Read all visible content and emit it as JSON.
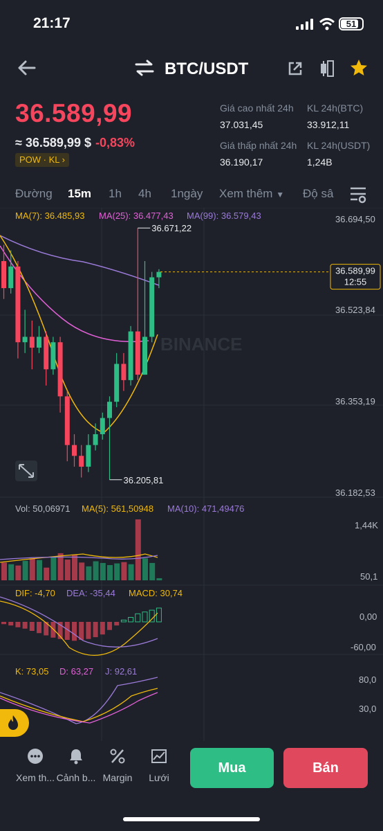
{
  "status": {
    "time": "21:17",
    "battery": "51"
  },
  "header": {
    "pair": "BTC/USDT"
  },
  "price": {
    "last": "36.589,99",
    "approx": "≈ 36.589,99 $",
    "change": "-0,83%",
    "tags": "POW · KL ›"
  },
  "stats": {
    "high_label": "Giá cao nhất 24h",
    "high_value": "37.031,45",
    "vol_btc_label": "KL 24h(BTC)",
    "vol_btc_value": "33.912,11",
    "low_label": "Giá thấp nhất 24h",
    "low_value": "36.190,17",
    "vol_usdt_label": "KL 24h(USDT)",
    "vol_usdt_value": "1,24B"
  },
  "tabs": [
    "Đường",
    "15m",
    "1h",
    "4h",
    "1ngày",
    "Xem thêm",
    "Độ sâ"
  ],
  "active_tab": "15m",
  "colors": {
    "up": "#2ebd85",
    "down": "#f6465d",
    "ma7": "#f0b90b",
    "ma25": "#e361d8",
    "ma99": "#9b7bd9",
    "accent": "#f0b90b"
  },
  "chart_data": {
    "type": "candlestick",
    "indicators": {
      "ma7": "MA(7): 36.485,93",
      "ma25": "MA(25): 36.477,43",
      "ma99": "MA(99): 36.579,43"
    },
    "price_axis": [
      "36.694,50",
      "36.523,84",
      "36.353,19",
      "36.182,53"
    ],
    "price_range": [
      36182.53,
      36694.5
    ],
    "current_price_label": "36.589,99",
    "current_price": 36589.99,
    "countdown": "12:55",
    "high_marker": "36.671,22",
    "high_marker_value": 36671.22,
    "low_marker": "36.205,81",
    "low_marker_value": 36205.81,
    "watermark": "BINANCE",
    "candles": [
      {
        "o": 36610,
        "c": 36560,
        "h": 36640,
        "l": 36540
      },
      {
        "o": 36560,
        "c": 36600,
        "h": 36630,
        "l": 36550
      },
      {
        "o": 36600,
        "c": 36460,
        "h": 36610,
        "l": 36430
      },
      {
        "o": 36460,
        "c": 36470,
        "h": 36520,
        "l": 36440
      },
      {
        "o": 36470,
        "c": 36450,
        "h": 36500,
        "l": 36410
      },
      {
        "o": 36450,
        "c": 36470,
        "h": 36490,
        "l": 36440
      },
      {
        "o": 36470,
        "c": 36410,
        "h": 36480,
        "l": 36380
      },
      {
        "o": 36410,
        "c": 36460,
        "h": 36470,
        "l": 36400
      },
      {
        "o": 36460,
        "c": 36360,
        "h": 36470,
        "l": 36330
      },
      {
        "o": 36360,
        "c": 36270,
        "h": 36370,
        "l": 36240
      },
      {
        "o": 36270,
        "c": 36250,
        "h": 36290,
        "l": 36230
      },
      {
        "o": 36250,
        "c": 36230,
        "h": 36270,
        "l": 36210
      },
      {
        "o": 36230,
        "c": 36270,
        "h": 36290,
        "l": 36220
      },
      {
        "o": 36270,
        "c": 36290,
        "h": 36310,
        "l": 36260
      },
      {
        "o": 36290,
        "c": 36320,
        "h": 36330,
        "l": 36280
      },
      {
        "o": 36320,
        "c": 36350,
        "h": 36360,
        "l": 36206
      },
      {
        "o": 36350,
        "c": 36420,
        "h": 36440,
        "l": 36340
      },
      {
        "o": 36420,
        "c": 36390,
        "h": 36440,
        "l": 36370
      },
      {
        "o": 36390,
        "c": 36480,
        "h": 36490,
        "l": 36380
      },
      {
        "o": 36480,
        "c": 36400,
        "h": 36671,
        "l": 36390
      },
      {
        "o": 36400,
        "c": 36470,
        "h": 36610,
        "l": 36400
      },
      {
        "o": 36470,
        "c": 36580,
        "h": 36590,
        "l": 36460
      },
      {
        "o": 36580,
        "c": 36590,
        "h": 36595,
        "l": 36560
      }
    ],
    "volume": {
      "label_vol": "Vol: 50,06971",
      "label_ma5": "MA(5): 561,50948",
      "label_ma10": "MA(10): 471,49476",
      "axis": [
        "1,44K",
        "50,1"
      ],
      "max": 1440,
      "values": [
        420,
        380,
        350,
        460,
        520,
        480,
        300,
        560,
        640,
        490,
        600,
        420,
        330,
        450,
        410,
        360,
        400,
        430,
        380,
        1440,
        520,
        410,
        50
      ]
    },
    "macd": {
      "label_dif": "DIF: -4,70",
      "label_dea": "DEA: -35,44",
      "label_macd": "MACD: 30,74",
      "axis": [
        "0,00",
        "-60,00"
      ],
      "hist": [
        -5,
        -8,
        -12,
        -15,
        -20,
        -25,
        -30,
        -35,
        -38,
        -40,
        -42,
        -40,
        -38,
        -34,
        -28,
        -18,
        -8,
        4,
        10,
        18,
        22,
        26,
        30.74
      ]
    },
    "kdj": {
      "label_k": "K: 73,05",
      "label_d": "D: 63,27",
      "label_j": "J: 92,61",
      "axis": [
        "80,0",
        "30,0"
      ]
    }
  },
  "bottom_nav": [
    {
      "label": "Xem th...",
      "icon": "more-icon"
    },
    {
      "label": "Cảnh b...",
      "icon": "bell-icon"
    },
    {
      "label": "Margin",
      "icon": "margin-icon"
    },
    {
      "label": "Lưới",
      "icon": "grid-icon"
    }
  ],
  "buy_label": "Mua",
  "sell_label": "Bán"
}
